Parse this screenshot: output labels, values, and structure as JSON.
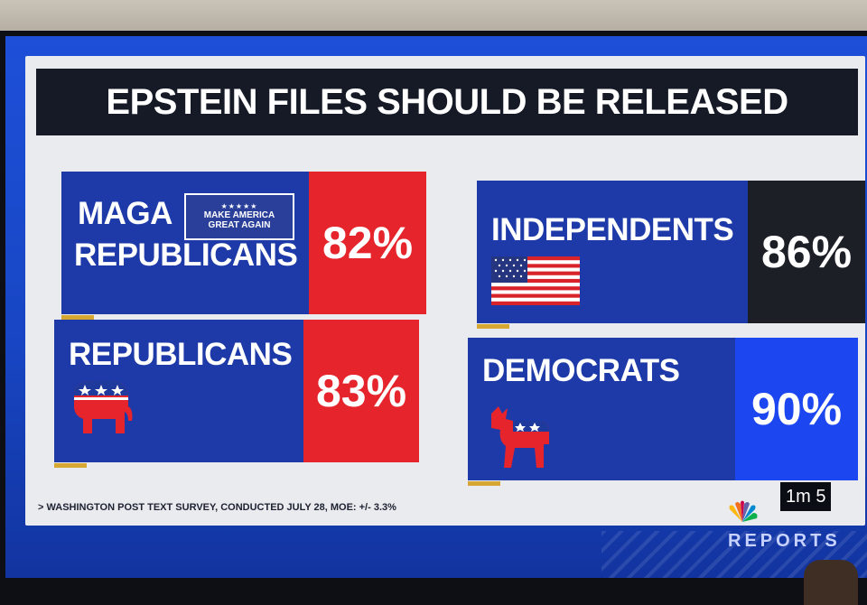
{
  "headline": "EPSTEIN FILES SHOULD BE RELEASED",
  "groups": [
    {
      "label_line1": "MAGA",
      "label_line2": "REPUBLICANS",
      "badge": [
        "MAKE AMERICA",
        "GREAT AGAIN"
      ],
      "value": "82%"
    },
    {
      "label_line1": "INDEPENDENTS",
      "value": "86%"
    },
    {
      "label_line1": "REPUBLICANS",
      "value": "83%"
    },
    {
      "label_line1": "DEMOCRATS",
      "value": "90%"
    }
  ],
  "source_note": "> WASHINGTON POST TEXT SURVEY, CONDUCTED JULY 28, MOE: +/- 3.3%",
  "overlay": {
    "timer": "1m 5",
    "show_name_fragment": "REPORTS"
  },
  "colors": {
    "panel_blue": "#1e3aa8",
    "red": "#e5242c",
    "dark": "#1d1f27",
    "bright_blue": "#1c47f0",
    "accent_gold": "#d7a733"
  },
  "icons": [
    "maga-hat-badge",
    "us-flag-icon",
    "republican-elephant-icon",
    "democratic-donkey-icon",
    "peacock-logo-icon"
  ]
}
